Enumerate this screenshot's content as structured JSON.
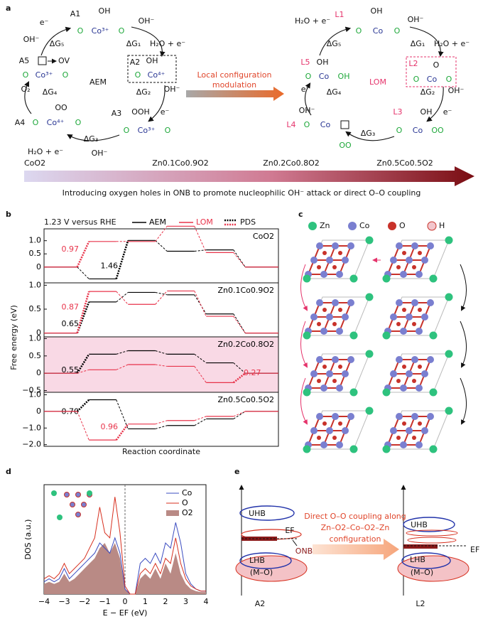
{
  "panels": {
    "a": {
      "label": "a",
      "aem": [
        "A1",
        "OH",
        "e⁻",
        "O",
        "Co³⁺",
        "O",
        "OH⁻",
        "ΔG₅",
        "ΔG₁",
        "OH⁻",
        "H₂O + e⁻",
        "A5",
        "OV",
        "O",
        "Co³⁺",
        "O",
        "AEM",
        "A2",
        "OH",
        "O",
        "Co⁴⁺",
        "O₂",
        "ΔG₄",
        "ΔG₂",
        "OH⁻",
        "e⁻",
        "OO",
        "A4",
        "O",
        "Co⁴⁺",
        "O",
        "A3",
        "OOH",
        "O",
        "Co³⁺",
        "O",
        "ΔG₃",
        "H₂O + e⁻",
        "OH⁻"
      ],
      "middle": [
        "Local configuration",
        "modulation"
      ],
      "lom": [
        "H₂O + e⁻",
        "L1",
        "OH",
        "O",
        "Co",
        "O",
        "OH⁻",
        "ΔG₅",
        "ΔG₁",
        "H₂O + e⁻",
        "L5",
        "OH",
        "O",
        "Co",
        "OH",
        "LOM",
        "L2",
        "O",
        "O",
        "Co",
        "O",
        "e⁻",
        "ΔG₄",
        "ΔG₂",
        "OH⁻",
        "OH⁻",
        "L3",
        "OH",
        "e⁻",
        "L4",
        "O",
        "Co",
        "O",
        "Co",
        "OO",
        "ΔG₃",
        "OO"
      ],
      "bar_labels": [
        "CoO2",
        "Zn0.1Co0.9O2",
        "Zn0.2Co0.8O2",
        "Zn0.5Co0.5O2"
      ],
      "caption": "Introducing oxygen holes in ONB to promote nucleophilic OH⁻ attack or direct O–O coupling"
    },
    "b": {
      "label": "b",
      "condition": "1.23 V versus RHE",
      "pds_legend": "PDS",
      "ylabel": "Free energy (eV)",
      "xlabel": "Reaction coordinate"
    },
    "c": {
      "label": "c",
      "legend": [
        "Zn",
        "Co",
        "O",
        "H"
      ]
    },
    "d": {
      "label": "d"
    },
    "e": {
      "label": "e",
      "left_labels": [
        "UHB",
        "LHB",
        "(M–O)",
        "EF",
        "ONB"
      ],
      "arrow_text": [
        "Direct O–O coupling along",
        "Zn–O2–Co–O2–Zn",
        "configuration"
      ],
      "right_labels": [
        "UHB",
        "LHB",
        "(M–O)",
        "EF"
      ],
      "states": [
        "A2",
        "L2"
      ]
    }
  },
  "chart_data": [
    {
      "type": "step",
      "title": "CoO2",
      "categories": [
        null,
        null,
        null,
        null,
        null,
        null
      ],
      "ylim": [
        -0.6,
        1.45
      ],
      "yticks": [
        {
          "value": 1,
          "label": "1.0"
        },
        0.5,
        0
      ],
      "series": [
        {
          "name": "AEM",
          "color": "#000000",
          "values": [
            0,
            -0.45,
            1.01,
            0.6,
            0.65,
            0
          ],
          "pds_step": 2,
          "pds_value": 1.46
        },
        {
          "name": "LOM",
          "color": "#e8334a",
          "values": [
            0,
            0.97,
            0.97,
            1.55,
            0.55,
            0
          ],
          "pds_step": 1,
          "pds_value": 0.97
        }
      ]
    },
    {
      "type": "step",
      "title": "Zn0.1Co0.9O2",
      "categories": [
        null,
        null,
        null,
        null,
        null,
        null
      ],
      "ylim": [
        -0.08,
        1.05
      ],
      "yticks": [
        {
          "value": 1,
          "label": "1.0"
        },
        0.5,
        0
      ],
      "series": [
        {
          "name": "AEM",
          "color": "#000000",
          "values": [
            0,
            0.65,
            0.85,
            0.8,
            0.4,
            0
          ],
          "pds_step": 1,
          "pds_value": 0.65
        },
        {
          "name": "LOM",
          "color": "#e8334a",
          "values": [
            0,
            0.87,
            0.6,
            0.88,
            0.35,
            0
          ],
          "pds_step": 1,
          "pds_value": 0.87
        }
      ]
    },
    {
      "type": "step",
      "title": "Zn0.2Co0.8O2",
      "categories": [
        null,
        null,
        null,
        null,
        null,
        null
      ],
      "background": "#f9d9e5",
      "ylim": [
        -0.55,
        1.05
      ],
      "yticks": [
        {
          "value": 1,
          "label": "1.0"
        },
        0.5,
        0,
        {
          "value": -0.5,
          "label": "−0.5"
        }
      ],
      "series": [
        {
          "name": "AEM",
          "color": "#000000",
          "values": [
            0,
            0.55,
            0.65,
            0.55,
            0.3,
            0
          ],
          "pds_step": 1,
          "pds_value": 0.55
        },
        {
          "name": "LOM",
          "color": "#e8334a",
          "values": [
            0,
            0.1,
            0.25,
            0.2,
            -0.27,
            0
          ],
          "pds_step": 5,
          "pds_value": 0.27
        }
      ]
    },
    {
      "type": "step",
      "title": "Zn0.5Co0.5O2",
      "categories": [
        null,
        null,
        null,
        null,
        null,
        null
      ],
      "ylim": [
        -2.1,
        1.15
      ],
      "yticks": [
        {
          "value": 1,
          "label": "1.0"
        },
        0,
        {
          "value": -1,
          "label": "−1.0"
        },
        {
          "value": -2,
          "label": "−2.0"
        }
      ],
      "series": [
        {
          "name": "AEM",
          "color": "#000000",
          "values": [
            0,
            0.7,
            -1.05,
            -0.85,
            -0.45,
            0
          ],
          "pds_step": 1,
          "pds_value": {
            "value": 0.7,
            "label": "0.70"
          }
        },
        {
          "name": "LOM",
          "color": "#e8334a",
          "values": [
            0,
            -1.72,
            -0.76,
            -0.55,
            -0.3,
            0
          ],
          "pds_step": 2,
          "pds_value": 0.96
        }
      ]
    },
    {
      "type": "dos",
      "xlabel": "E − EF (eV)",
      "ylabel": "DOS (a.u.)",
      "xlim": [
        -4,
        4
      ],
      "ylim": [
        0,
        1
      ],
      "xticks": [
        {
          "value": -4,
          "label": "−4"
        },
        {
          "value": -3,
          "label": "−3"
        },
        {
          "value": -2,
          "label": "−2"
        },
        {
          "value": -1,
          "label": "−1"
        },
        0,
        1,
        2,
        3,
        4
      ],
      "x": [
        -4,
        -3.75,
        -3.5,
        -3.25,
        -3,
        -2.75,
        -2.5,
        -2.25,
        -2,
        -1.75,
        -1.5,
        -1.25,
        -1,
        -0.75,
        -0.5,
        -0.25,
        0,
        0.25,
        0.5,
        0.75,
        1,
        1.25,
        1.5,
        1.75,
        2,
        2.25,
        2.5,
        2.75,
        3,
        3.25,
        3.5,
        3.75,
        4
      ],
      "series": [
        {
          "name": "Co",
          "color": "#3b4cc0",
          "values": [
            0.12,
            0.15,
            0.12,
            0.15,
            0.25,
            0.15,
            0.2,
            0.25,
            0.3,
            0.35,
            0.4,
            0.5,
            0.45,
            0.4,
            0.55,
            0.4,
            0.05,
            0,
            0,
            0.3,
            0.35,
            0.3,
            0.4,
            0.3,
            0.5,
            0.45,
            0.7,
            0.5,
            0.2,
            0.1,
            0.05,
            0.03,
            0.03
          ]
        },
        {
          "name": "O",
          "color": "#d7301f",
          "values": [
            0.15,
            0.18,
            0.15,
            0.2,
            0.3,
            0.2,
            0.25,
            0.3,
            0.35,
            0.45,
            0.55,
            0.85,
            0.6,
            0.55,
            0.95,
            0.6,
            0.08,
            0,
            0,
            0.2,
            0.25,
            0.2,
            0.3,
            0.2,
            0.35,
            0.3,
            0.55,
            0.3,
            0.15,
            0.08,
            0.05,
            0.03,
            0.03
          ]
        },
        {
          "name": "O2",
          "color": "#b98a85",
          "fill": true,
          "values": [
            0.1,
            0.12,
            0.1,
            0.12,
            0.2,
            0.12,
            0.15,
            0.2,
            0.25,
            0.3,
            0.35,
            0.45,
            0.5,
            0.4,
            0.5,
            0.35,
            0.05,
            0,
            0,
            0.15,
            0.2,
            0.15,
            0.25,
            0.15,
            0.3,
            0.2,
            0.4,
            0.2,
            0.1,
            0.05,
            0.03,
            0.02,
            0.02
          ]
        }
      ]
    }
  ]
}
